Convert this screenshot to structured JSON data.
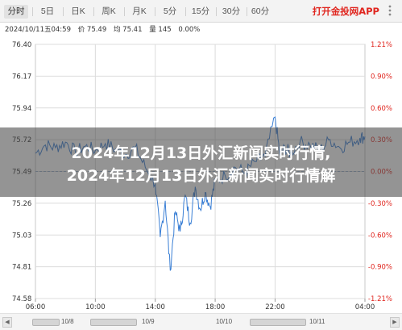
{
  "tabs": [
    {
      "label": "分时",
      "active": true
    },
    {
      "label": "5日",
      "active": false
    },
    {
      "label": "日K",
      "active": false
    },
    {
      "label": "周K",
      "active": false
    },
    {
      "label": "月K",
      "active": false
    },
    {
      "label": "5分",
      "active": false
    },
    {
      "label": "15分",
      "active": false
    },
    {
      "label": "30分",
      "active": false
    },
    {
      "label": "60分",
      "active": false
    }
  ],
  "app_link": "打开金投网APP",
  "info": {
    "datetime": "2024/10/11五04:59",
    "price": "价 75.49",
    "avg": "均 75.41",
    "volume": "量 145",
    "change": "0.00%"
  },
  "headline": {
    "line1": "2024年12月13日外汇新闻实时行情,",
    "line2": "2024年12月13日外汇新闻实时行情解"
  },
  "scrollbar": {
    "labels": [
      "10/8",
      "10/9",
      "10/10",
      "10/11"
    ]
  },
  "colors": {
    "price_line": "#3a7fd5",
    "pct_axis": "#e0261f",
    "grid": "#dcdcdc",
    "ref_line": "#9aaec8"
  },
  "chart_data": {
    "type": "line",
    "title": "",
    "xlabel": "",
    "ylabel": "",
    "x_ticks": [
      "06:00",
      "10:00",
      "14:00",
      "18:00",
      "22:00",
      "04:00"
    ],
    "y_ticks": [
      "76.40",
      "76.17",
      "75.94",
      "75.72",
      "75.49",
      "75.26",
      "75.03",
      "74.81",
      "74.58"
    ],
    "pct_ticks": [
      "1.21%",
      "0.90%",
      "0.60%",
      "0.30%",
      "0.00%",
      "-0.30%",
      "-0.60%",
      "-0.90%",
      "-1.21%"
    ],
    "ylim": [
      74.58,
      76.4
    ],
    "reference_value": 75.49,
    "grid": true,
    "series": [
      {
        "x": [
          "06:00",
          "06:40",
          "07:20",
          "08:00",
          "08:40",
          "09:20",
          "10:00",
          "10:40",
          "11:20",
          "12:00",
          "12:40",
          "13:20",
          "14:00",
          "14:20",
          "14:40",
          "15:00",
          "15:20",
          "15:40",
          "16:00",
          "16:20",
          "16:40",
          "17:00",
          "17:20",
          "17:40",
          "18:00",
          "18:40",
          "19:20",
          "20:00",
          "20:40",
          "21:20",
          "22:00",
          "22:20",
          "22:40",
          "23:00",
          "23:40",
          "00:20",
          "01:00",
          "01:40",
          "02:20",
          "03:00",
          "03:40",
          "04:00"
        ],
        "values": [
          75.62,
          75.68,
          75.66,
          75.7,
          75.63,
          75.67,
          75.64,
          75.69,
          75.65,
          75.61,
          75.66,
          75.52,
          75.4,
          75.02,
          75.28,
          74.78,
          75.2,
          75.06,
          75.32,
          75.12,
          75.38,
          75.22,
          75.34,
          75.24,
          75.42,
          75.46,
          75.52,
          75.48,
          75.56,
          75.6,
          75.88,
          75.6,
          75.66,
          75.62,
          75.7,
          75.68,
          75.64,
          75.72,
          75.66,
          75.7,
          75.73,
          75.74
        ]
      }
    ]
  }
}
